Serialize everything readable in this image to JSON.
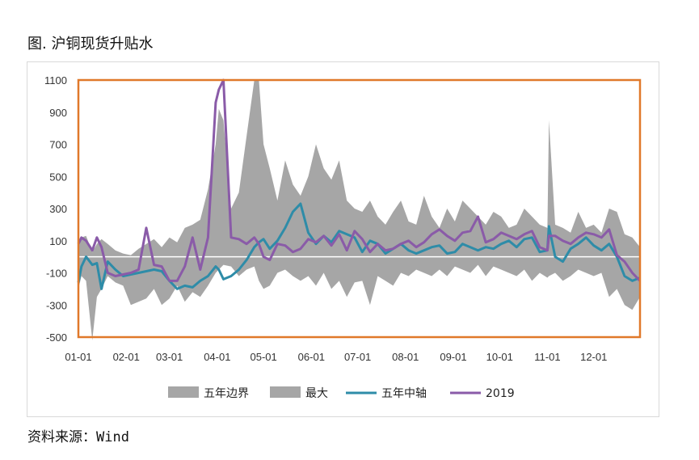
{
  "figure": {
    "title": "图. 沪铜现货升贴水",
    "source": "资料来源：Wind"
  },
  "chart_data": {
    "type": "area",
    "title": "",
    "xlabel": "",
    "ylabel": "",
    "ylim": [
      -500,
      1100
    ],
    "y_ticks": [
      -500,
      -300,
      -100,
      100,
      300,
      500,
      700,
      900,
      1100
    ],
    "x_ticks": [
      "01-01",
      "02-01",
      "03-01",
      "04-01",
      "05-01",
      "06-01",
      "07-01",
      "08-01",
      "09-01",
      "10-01",
      "11-01",
      "12-01"
    ],
    "x": [
      1,
      3,
      6,
      10,
      13,
      16,
      20,
      25,
      30,
      35,
      40,
      45,
      50,
      55,
      60,
      65,
      70,
      75,
      80,
      85,
      90,
      92,
      95,
      100,
      105,
      110,
      115,
      118,
      121,
      125,
      130,
      135,
      140,
      145,
      150,
      155,
      160,
      165,
      170,
      175,
      180,
      185,
      190,
      195,
      200,
      205,
      210,
      215,
      220,
      225,
      230,
      235,
      240,
      245,
      250,
      255,
      260,
      265,
      270,
      275,
      280,
      285,
      290,
      295,
      300,
      305,
      306,
      310,
      315,
      320,
      325,
      330,
      335,
      340,
      345,
      350,
      355,
      360,
      365
    ],
    "series": [
      {
        "name": "五年边界",
        "kind": "band",
        "color": "#a6a6a6",
        "upper": [
          60,
          120,
          130,
          30,
          80,
          110,
          80,
          40,
          20,
          10,
          50,
          80,
          110,
          60,
          120,
          90,
          180,
          200,
          230,
          420,
          700,
          920,
          850,
          300,
          400,
          750,
          1100,
          1100,
          700,
          550,
          350,
          600,
          450,
          380,
          500,
          700,
          550,
          480,
          600,
          350,
          300,
          280,
          350,
          250,
          200,
          280,
          350,
          220,
          200,
          380,
          250,
          180,
          300,
          220,
          350,
          300,
          250,
          200,
          280,
          250,
          180,
          200,
          300,
          250,
          200,
          180,
          850,
          200,
          180,
          150,
          280,
          180,
          200,
          150,
          300,
          280,
          140,
          120,
          60
        ],
        "lower": [
          -200,
          -120,
          -150,
          -520,
          -250,
          -200,
          -120,
          -160,
          -180,
          -300,
          -280,
          -260,
          -200,
          -300,
          -260,
          -180,
          -280,
          -220,
          -250,
          -180,
          -100,
          -80,
          -50,
          -60,
          -120,
          -80,
          -60,
          -150,
          -200,
          -180,
          -100,
          -80,
          -120,
          -150,
          -120,
          -180,
          -100,
          -200,
          -150,
          -250,
          -160,
          -150,
          -300,
          -120,
          -150,
          -180,
          -100,
          -120,
          -80,
          -100,
          -120,
          -80,
          -120,
          -60,
          -80,
          -100,
          -50,
          -120,
          -60,
          -80,
          -100,
          -120,
          -80,
          -150,
          -100,
          -130,
          -120,
          -100,
          -150,
          -120,
          -80,
          -100,
          -120,
          -100,
          -250,
          -200,
          -300,
          -330,
          -250
        ]
      },
      {
        "name": "最大",
        "kind": "band",
        "color": "#a6a6a6",
        "upper": [],
        "lower": []
      },
      {
        "name": "五年中轴",
        "kind": "line",
        "color": "#2e8ca8",
        "values": [
          -160,
          -60,
          0,
          -50,
          -40,
          -200,
          -30,
          -80,
          -120,
          -110,
          -100,
          -90,
          -80,
          -90,
          -150,
          -200,
          -180,
          -190,
          -150,
          -120,
          -60,
          -80,
          -140,
          -120,
          -80,
          -20,
          60,
          90,
          110,
          50,
          100,
          180,
          280,
          330,
          150,
          80,
          130,
          90,
          160,
          140,
          120,
          30,
          100,
          80,
          20,
          50,
          80,
          40,
          20,
          40,
          60,
          70,
          20,
          30,
          80,
          60,
          40,
          60,
          50,
          80,
          100,
          60,
          110,
          120,
          30,
          40,
          190,
          0,
          -30,
          50,
          80,
          120,
          70,
          40,
          80,
          0,
          -120,
          -150,
          -130
        ]
      },
      {
        "name": "2019",
        "kind": "line",
        "color": "#8a5ba8",
        "values": [
          80,
          120,
          100,
          40,
          120,
          60,
          -100,
          -120,
          -110,
          -100,
          -80,
          180,
          -50,
          -60,
          -150,
          -150,
          -60,
          120,
          -80,
          120,
          960,
          1040,
          1100,
          120,
          110,
          80,
          120,
          80,
          0,
          -20,
          80,
          70,
          30,
          50,
          110,
          90,
          130,
          70,
          140,
          40,
          160,
          110,
          30,
          80,
          40,
          50,
          80,
          100,
          60,
          90,
          140,
          170,
          130,
          100,
          150,
          160,
          250,
          90,
          110,
          150,
          130,
          110,
          140,
          160,
          60,
          40,
          130,
          130,
          100,
          80,
          120,
          150,
          140,
          120,
          170,
          10,
          -30,
          -100,
          -150
        ]
      }
    ],
    "legend": {
      "position": "bottom",
      "entries": [
        "五年边界",
        "最大",
        "五年中轴",
        "2019"
      ]
    },
    "grid": false,
    "zero_line": true,
    "highlight_box_color": "#e0792a"
  }
}
